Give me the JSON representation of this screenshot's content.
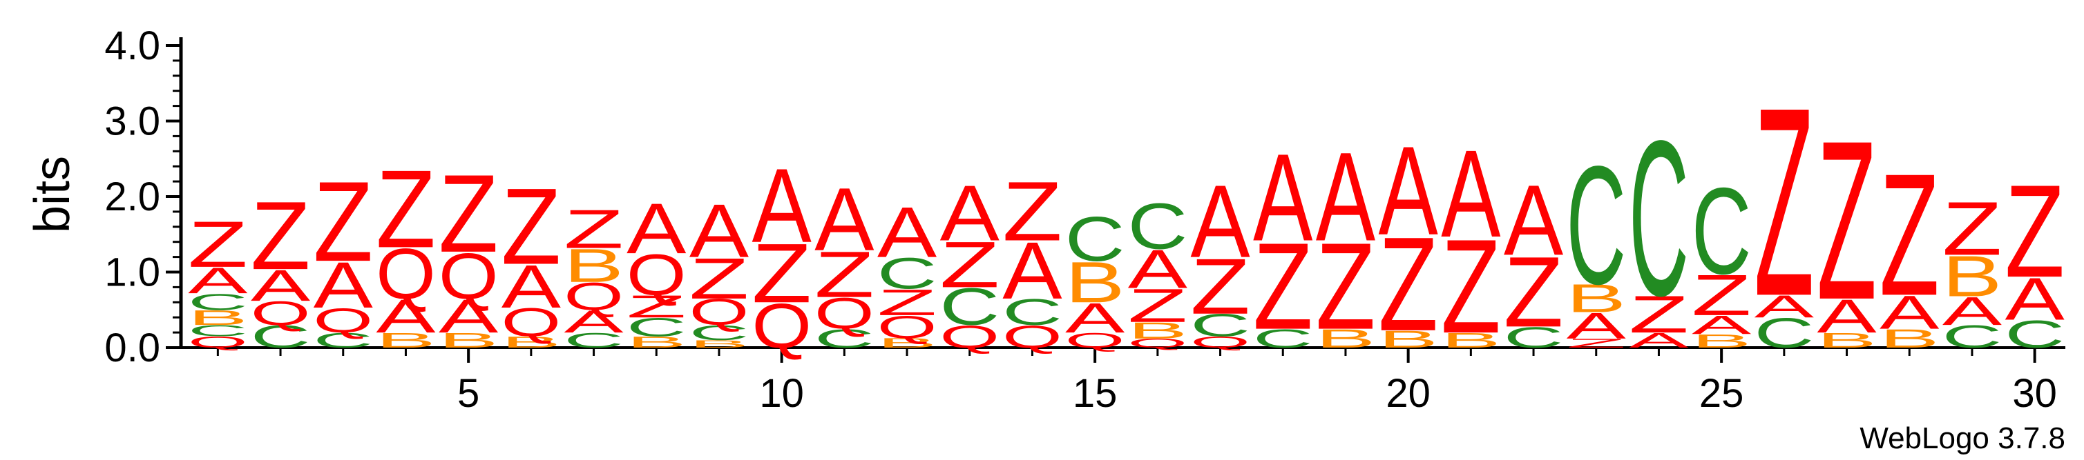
{
  "chart_data": {
    "type": "sequence-logo",
    "ylabel": "bits",
    "ylim": [
      0,
      4.0
    ],
    "yticks": [
      {
        "value": 0,
        "label": "0.0"
      },
      {
        "value": 1,
        "label": "1.0"
      },
      {
        "value": 2,
        "label": "2.0"
      },
      {
        "value": 3,
        "label": "3.0"
      },
      {
        "value": 4,
        "label": "4.0"
      }
    ],
    "xticks": [
      {
        "value": 5,
        "label": "5"
      },
      {
        "value": 10,
        "label": "10"
      },
      {
        "value": 15,
        "label": "15"
      },
      {
        "value": 20,
        "label": "20"
      },
      {
        "value": 25,
        "label": "25"
      },
      {
        "value": 30,
        "label": "30"
      }
    ],
    "positions": 30,
    "footer": "WebLogo 3.7.8",
    "colors": {
      "A": "#ff0000",
      "Z": "#ff0000",
      "Q": "#ff0000",
      "C": "#228b22",
      "B": "#ff8c00"
    },
    "columns": [
      {
        "pos": 1,
        "stack": [
          [
            "Q",
            0.15
          ],
          [
            "C",
            0.15
          ],
          [
            "B",
            0.2
          ],
          [
            "C",
            0.22
          ],
          [
            "A",
            0.35
          ],
          [
            "Z",
            0.62
          ]
        ]
      },
      {
        "pos": 2,
        "stack": [
          [
            "C",
            0.3
          ],
          [
            "Q",
            0.32
          ],
          [
            "A",
            0.42
          ],
          [
            "Z",
            0.92
          ]
        ]
      },
      {
        "pos": 3,
        "stack": [
          [
            "C",
            0.2
          ],
          [
            "Q",
            0.33
          ],
          [
            "A",
            0.62
          ],
          [
            "Z",
            1.08
          ]
        ]
      },
      {
        "pos": 4,
        "stack": [
          [
            "B",
            0.2
          ],
          [
            "A",
            0.45
          ],
          [
            "Q",
            0.68
          ],
          [
            "Z",
            1.05
          ]
        ]
      },
      {
        "pos": 5,
        "stack": [
          [
            "B",
            0.2
          ],
          [
            "A",
            0.45
          ],
          [
            "Q",
            0.62
          ],
          [
            "Z",
            1.05
          ]
        ]
      },
      {
        "pos": 6,
        "stack": [
          [
            "B",
            0.15
          ],
          [
            "Q",
            0.38
          ],
          [
            "A",
            0.58
          ],
          [
            "Z",
            1.03
          ]
        ]
      },
      {
        "pos": 7,
        "stack": [
          [
            "C",
            0.2
          ],
          [
            "A",
            0.3
          ],
          [
            "Q",
            0.37
          ],
          [
            "B",
            0.45
          ],
          [
            "Z",
            0.52
          ]
        ]
      },
      {
        "pos": 8,
        "stack": [
          [
            "B",
            0.15
          ],
          [
            "C",
            0.25
          ],
          [
            "Z",
            0.3
          ],
          [
            "Q",
            0.55
          ],
          [
            "A",
            0.68
          ]
        ]
      },
      {
        "pos": 9,
        "stack": [
          [
            "B",
            0.1
          ],
          [
            "C",
            0.2
          ],
          [
            "Q",
            0.35
          ],
          [
            "Z",
            0.55
          ],
          [
            "A",
            0.72
          ]
        ]
      },
      {
        "pos": 10,
        "stack": [
          [
            "Q",
            0.6
          ],
          [
            "Z",
            0.8
          ],
          [
            "A",
            1.0
          ]
        ]
      },
      {
        "pos": 11,
        "stack": [
          [
            "C",
            0.25
          ],
          [
            "Q",
            0.42
          ],
          [
            "Z",
            0.62
          ],
          [
            "A",
            0.85
          ]
        ]
      },
      {
        "pos": 12,
        "stack": [
          [
            "B",
            0.13
          ],
          [
            "Q",
            0.3
          ],
          [
            "Z",
            0.35
          ],
          [
            "C",
            0.42
          ],
          [
            "A",
            0.68
          ]
        ]
      },
      {
        "pos": 13,
        "stack": [
          [
            "Q",
            0.3
          ],
          [
            "C",
            0.5
          ],
          [
            "Z",
            0.62
          ],
          [
            "A",
            0.75
          ]
        ]
      },
      {
        "pos": 14,
        "stack": [
          [
            "Q",
            0.3
          ],
          [
            "C",
            0.35
          ],
          [
            "A",
            0.77
          ],
          [
            "Z",
            0.8
          ]
        ]
      },
      {
        "pos": 15,
        "stack": [
          [
            "Q",
            0.2
          ],
          [
            "A",
            0.4
          ],
          [
            "B",
            0.55
          ],
          [
            "C",
            0.6
          ]
        ]
      },
      {
        "pos": 16,
        "stack": [
          [
            "Q",
            0.12
          ],
          [
            "B",
            0.22
          ],
          [
            "Z",
            0.45
          ],
          [
            "A",
            0.52
          ],
          [
            "C",
            0.62
          ]
        ]
      },
      {
        "pos": 17,
        "stack": [
          [
            "Q",
            0.15
          ],
          [
            "C",
            0.3
          ],
          [
            "Z",
            0.75
          ],
          [
            "A",
            0.98
          ]
        ]
      },
      {
        "pos": 18,
        "stack": [
          [
            "C",
            0.25
          ],
          [
            "Z",
            1.17
          ],
          [
            "A",
            1.18
          ]
        ]
      },
      {
        "pos": 19,
        "stack": [
          [
            "B",
            0.25
          ],
          [
            "Z",
            1.17
          ],
          [
            "A",
            1.2
          ]
        ]
      },
      {
        "pos": 20,
        "stack": [
          [
            "B",
            0.23
          ],
          [
            "Z",
            1.27
          ],
          [
            "A",
            1.2
          ]
        ]
      },
      {
        "pos": 21,
        "stack": [
          [
            "B",
            0.2
          ],
          [
            "Z",
            1.27
          ],
          [
            "A",
            1.18
          ]
        ]
      },
      {
        "pos": 22,
        "stack": [
          [
            "C",
            0.28
          ],
          [
            "Z",
            0.95
          ],
          [
            "A",
            0.95
          ]
        ]
      },
      {
        "pos": 23,
        "stack": [
          [
            "Z",
            0.12
          ],
          [
            "A",
            0.35
          ],
          [
            "B",
            0.38
          ],
          [
            "C",
            1.6
          ]
        ]
      },
      {
        "pos": 24,
        "stack": [
          [
            "A",
            0.2
          ],
          [
            "Z",
            0.5
          ],
          [
            "C",
            2.1
          ]
        ]
      },
      {
        "pos": 25,
        "stack": [
          [
            "B",
            0.18
          ],
          [
            "A",
            0.25
          ],
          [
            "Z",
            0.55
          ],
          [
            "C",
            1.17
          ]
        ]
      },
      {
        "pos": 26,
        "stack": [
          [
            "C",
            0.4
          ],
          [
            "A",
            0.3
          ],
          [
            "Z",
            2.55
          ]
        ]
      },
      {
        "pos": 27,
        "stack": [
          [
            "B",
            0.2
          ],
          [
            "A",
            0.45
          ],
          [
            "Z",
            2.15
          ]
        ]
      },
      {
        "pos": 28,
        "stack": [
          [
            "B",
            0.25
          ],
          [
            "A",
            0.45
          ],
          [
            "Z",
            1.65
          ]
        ]
      },
      {
        "pos": 29,
        "stack": [
          [
            "C",
            0.3
          ],
          [
            "A",
            0.38
          ],
          [
            "B",
            0.55
          ],
          [
            "Z",
            0.72
          ]
        ]
      },
      {
        "pos": 30,
        "stack": [
          [
            "C",
            0.37
          ],
          [
            "A",
            0.57
          ],
          [
            "Z",
            1.25
          ]
        ]
      }
    ]
  }
}
